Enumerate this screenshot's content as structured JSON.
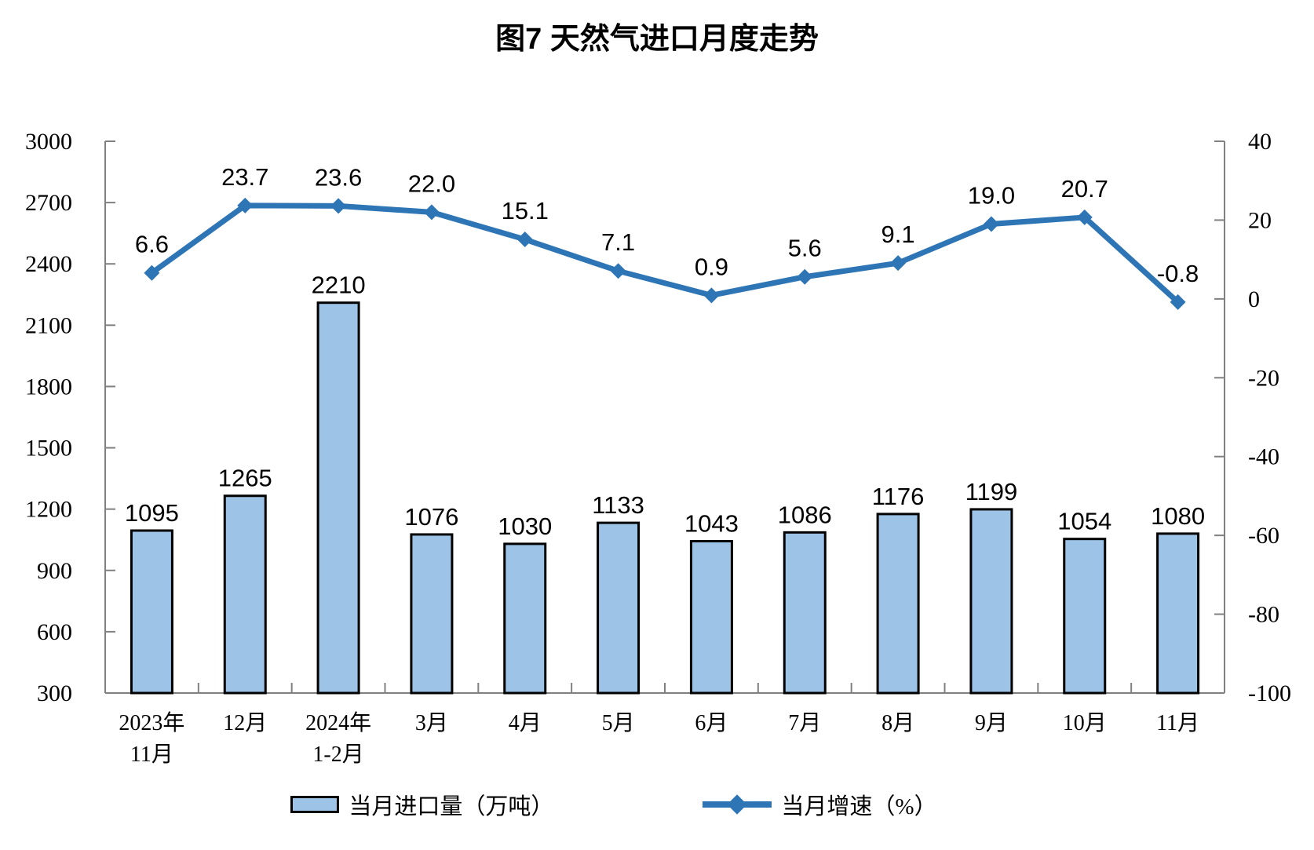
{
  "chart_data": {
    "type": "bar+line",
    "title": "图7 天然气进口月度走势",
    "categories": [
      "2023年\n11月",
      "12月",
      "2024年\n1-2月",
      "3月",
      "4月",
      "5月",
      "6月",
      "7月",
      "8月",
      "9月",
      "10月",
      "11月"
    ],
    "series": [
      {
        "name": "当月进口量（万吨）",
        "type": "bar",
        "axis": "left",
        "values": [
          1095,
          1265,
          2210,
          1076,
          1030,
          1133,
          1043,
          1086,
          1176,
          1199,
          1054,
          1080
        ],
        "labels": [
          "1095",
          "1265",
          "2210",
          "1076",
          "1030",
          "1133",
          "1043",
          "1086",
          "1176",
          "1199",
          "1054",
          "1080"
        ],
        "color": "#9DC3E6",
        "border": "#000000"
      },
      {
        "name": "当月增速（%）",
        "type": "line",
        "axis": "right",
        "values": [
          6.6,
          23.7,
          23.6,
          22.0,
          15.1,
          7.1,
          0.9,
          5.6,
          9.1,
          19.0,
          20.7,
          -0.8
        ],
        "labels": [
          "6.6",
          "23.7",
          "23.6",
          "22.0",
          "15.1",
          "7.1",
          "0.9",
          "5.6",
          "9.1",
          "19.0",
          "20.7",
          "-0.8"
        ],
        "color": "#2E75B6",
        "marker": "diamond"
      }
    ],
    "axis_left": {
      "min": 300,
      "max": 3000,
      "step": 300,
      "ticks": [
        "300",
        "600",
        "900",
        "1200",
        "1500",
        "1800",
        "2100",
        "2400",
        "2700",
        "3000"
      ]
    },
    "axis_right": {
      "min": -100,
      "max": 40,
      "step": 20,
      "ticks": [
        "-100",
        "-80",
        "-60",
        "-40",
        "-20",
        "0",
        "20",
        "40"
      ]
    },
    "grid": false,
    "legend_position": "bottom",
    "colors": {
      "axis": "#808080",
      "text": "#000000"
    }
  }
}
